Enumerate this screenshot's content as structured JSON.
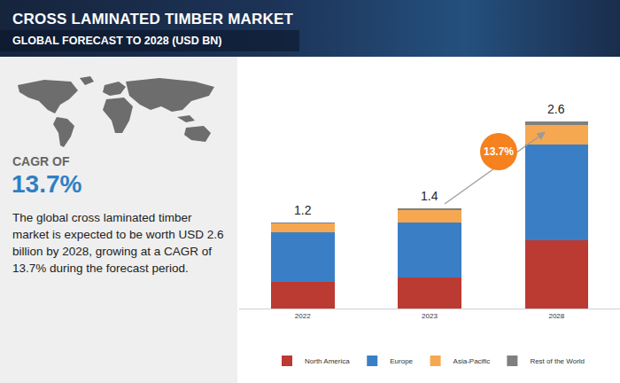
{
  "header": {
    "title": "CROSS LAMINATED TIMBER MARKET",
    "subtitle": "GLOBAL FORECAST TO 2028 (USD BN)"
  },
  "sidebar": {
    "cagr_label": "CAGR OF",
    "cagr_value": "13.7%",
    "text": "The global cross laminated timber market is expected to be worth USD 2.6 billion by 2028, growing at a CAGR of 13.7% during the forecast period."
  },
  "chart_data": {
    "type": "bar",
    "stacked": true,
    "categories": [
      "2022",
      "2023",
      "2028"
    ],
    "series": [
      {
        "name": "North America",
        "color": "#bb3a32",
        "values": [
          0.37,
          0.43,
          0.95
        ]
      },
      {
        "name": "Europe",
        "color": "#3a7fc6",
        "values": [
          0.69,
          0.77,
          1.33
        ]
      },
      {
        "name": "Asia-Pacific",
        "color": "#f6a851",
        "values": [
          0.13,
          0.17,
          0.27
        ]
      },
      {
        "name": "Rest of the World",
        "color": "#7f7f7f",
        "values": [
          0.01,
          0.03,
          0.05
        ]
      }
    ],
    "totals": [
      1.2,
      1.4,
      2.6
    ],
    "annotations": [
      "13.7%"
    ],
    "ylim": [
      0,
      2.8
    ],
    "tick_labels": "x",
    "grid": false,
    "legend": "bottom"
  }
}
